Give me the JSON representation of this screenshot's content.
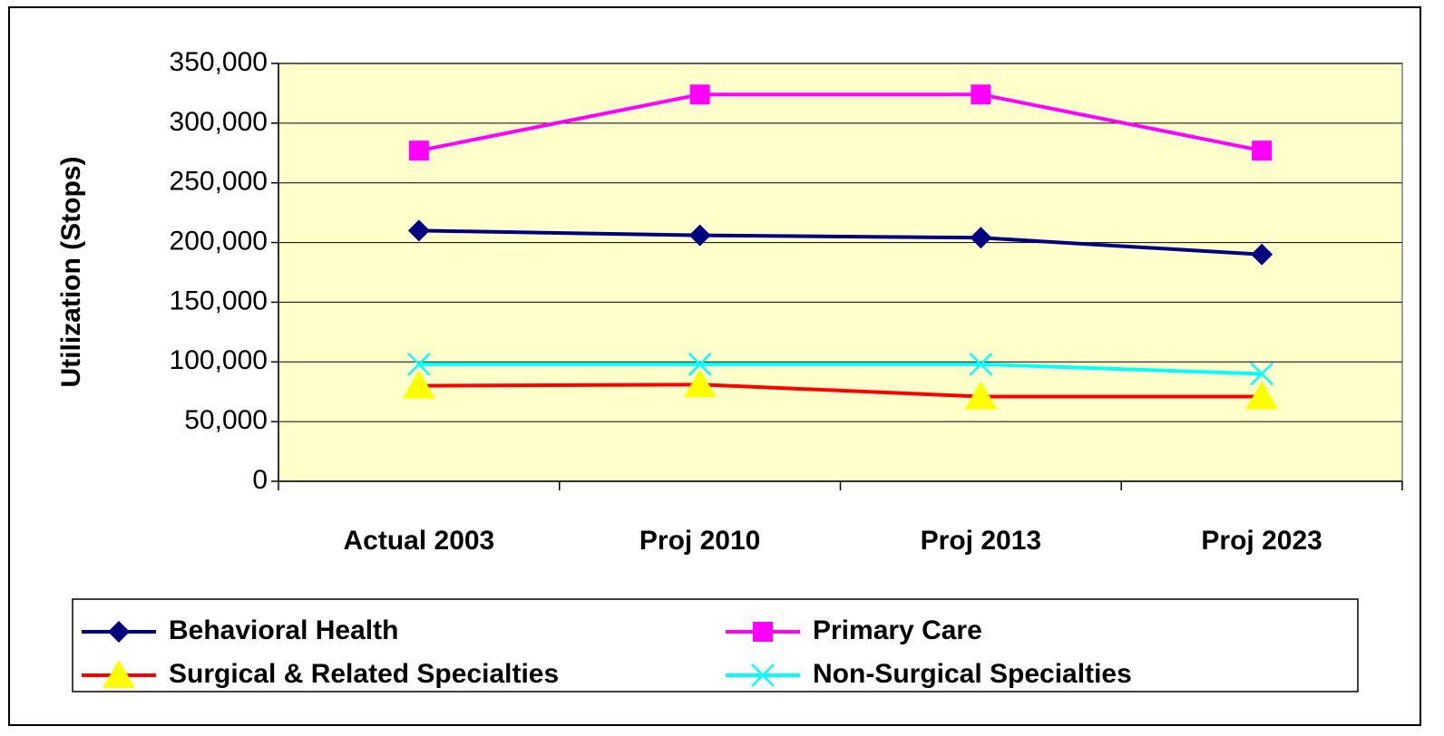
{
  "chart_data": {
    "type": "line",
    "y_label": "Utilization (Stops)",
    "categories": [
      "Actual  2003",
      "Proj 2010",
      "Proj 2013",
      "Proj 2023"
    ],
    "series": [
      {
        "name": "Behavioral Health",
        "color": "#000080",
        "marker": "diamond",
        "values": [
          210000,
          206000,
          204000,
          190000
        ]
      },
      {
        "name": "Primary Care",
        "color": "#ff00ff",
        "marker": "square",
        "values": [
          277000,
          324000,
          324000,
          277000
        ]
      },
      {
        "name": "Surgical & Related Specialties",
        "color": "#ff0000",
        "marker_color": "#ffff00",
        "marker": "triangle",
        "values": [
          80000,
          81000,
          71000,
          71000
        ]
      },
      {
        "name": "Non-Surgical Specialties",
        "color": "#00ffff",
        "marker": "x",
        "values": [
          98000,
          98000,
          98000,
          90000
        ]
      }
    ],
    "ylim": [
      0,
      350000
    ],
    "yticks": [
      0,
      {
        "value": 50000,
        "label": "50,000"
      },
      {
        "value": 100000,
        "label": "100,000"
      },
      {
        "value": 150000,
        "label": "150,000"
      },
      {
        "value": 200000,
        "label": "200,000"
      },
      {
        "value": 250000,
        "label": "250,000"
      },
      {
        "value": 300000,
        "label": "300,000"
      },
      {
        "value": 350000,
        "label": "350,000"
      }
    ],
    "grid": true,
    "legend": "bottom",
    "plot_background": "#ffffcc"
  }
}
